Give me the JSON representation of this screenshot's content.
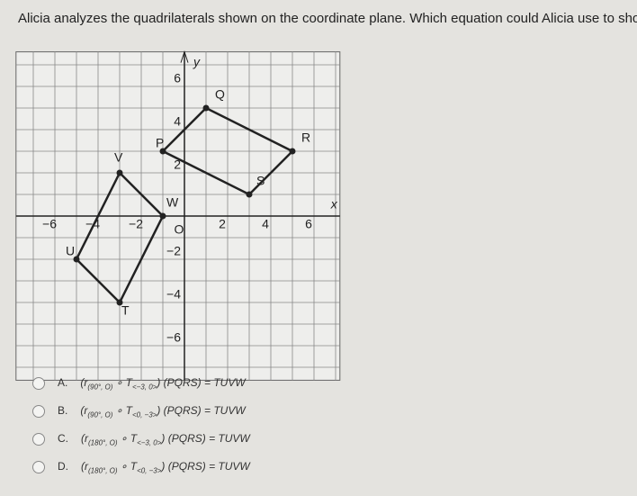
{
  "question": "Alicia analyzes the quadrilaterals shown on the coordinate plane. Which equation could Alicia use to show that these two s",
  "graph": {
    "axis_x": "x",
    "axis_y": "y",
    "xticks": [
      {
        "value": -6,
        "label": "−6"
      },
      {
        "value": -4,
        "label": "−4"
      },
      {
        "value": -2,
        "label": "−2"
      },
      {
        "value": 2,
        "label": "2"
      },
      {
        "value": 4,
        "label": "4"
      },
      {
        "value": 6,
        "label": "6"
      }
    ],
    "yticks": [
      {
        "value": 6,
        "label": "6"
      },
      {
        "value": 4,
        "label": "4"
      },
      {
        "value": 2,
        "label": "2"
      },
      {
        "value": -2,
        "label": "−2"
      },
      {
        "value": -4,
        "label": "−4"
      },
      {
        "value": -6,
        "label": "−6"
      }
    ],
    "origin": "O",
    "shapes": [
      {
        "points": [
          {
            "label": "P",
            "x": -1,
            "y": 3
          },
          {
            "label": "Q",
            "x": 1,
            "y": 5
          },
          {
            "label": "R",
            "x": 5,
            "y": 3
          },
          {
            "label": "S",
            "x": 3,
            "y": 1
          }
        ]
      },
      {
        "points": [
          {
            "label": "T",
            "x": -3,
            "y": -4
          },
          {
            "label": "U",
            "x": -5,
            "y": -2
          },
          {
            "label": "V",
            "x": -3,
            "y": 2
          },
          {
            "label": "W",
            "x": -1,
            "y": 0
          }
        ]
      }
    ]
  },
  "choices": [
    {
      "letter": "A.",
      "parts": [
        {
          "text": "(r"
        },
        {
          "sub": "(90°, O)"
        },
        {
          "text": " ∘ T"
        },
        {
          "sub": "<−3, 0>"
        },
        {
          "text": ") (PQRS) = TUVW"
        }
      ]
    },
    {
      "letter": "B.",
      "parts": [
        {
          "text": "(r"
        },
        {
          "sub": "(90°, O)"
        },
        {
          "text": " ∘ T"
        },
        {
          "sub": "<0, −3>"
        },
        {
          "text": ") (PQRS) = TUVW"
        }
      ]
    },
    {
      "letter": "C.",
      "parts": [
        {
          "text": "(r"
        },
        {
          "sub": "(180°, O)"
        },
        {
          "text": " ∘ T"
        },
        {
          "sub": "<−3, 0>"
        },
        {
          "text": ") (PQRS) = TUVW"
        }
      ]
    },
    {
      "letter": "D.",
      "parts": [
        {
          "text": "(r"
        },
        {
          "sub": "(180°, O)"
        },
        {
          "text": " ∘ T"
        },
        {
          "sub": "<0, −3>"
        },
        {
          "text": ") (PQRS) = TUVW"
        }
      ]
    }
  ]
}
